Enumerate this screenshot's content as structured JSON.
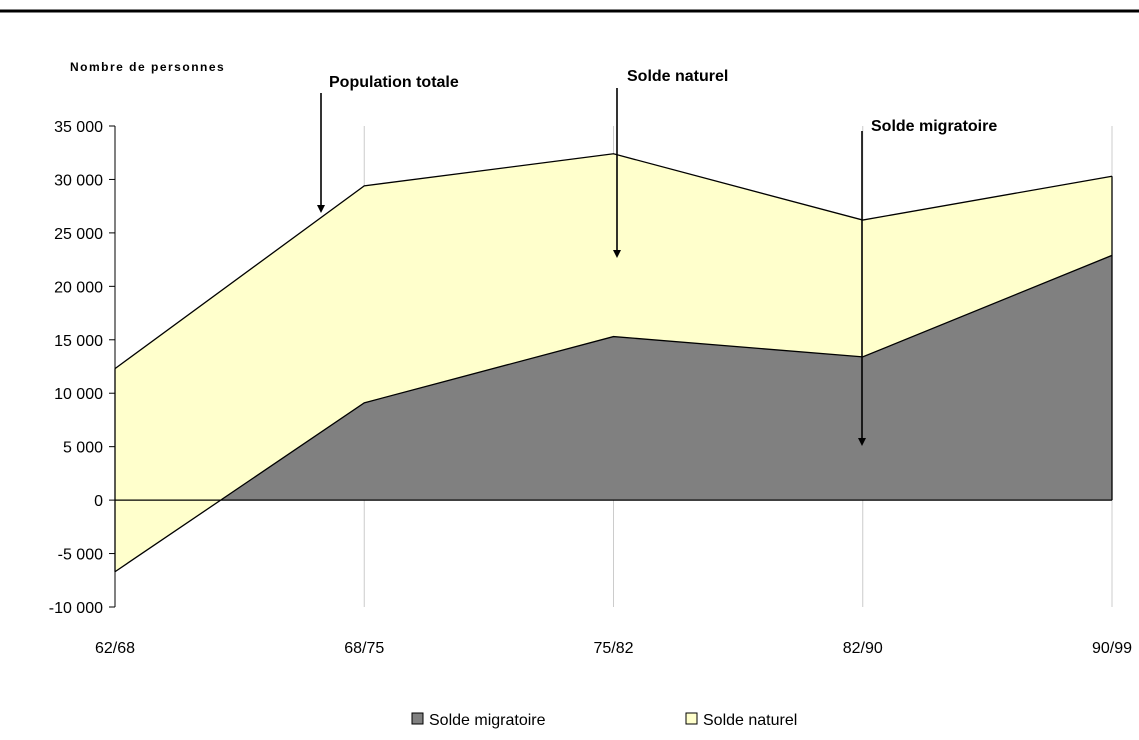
{
  "chart_data": {
    "type": "area",
    "stacked": true,
    "title": "",
    "xlabel": "",
    "ylabel": "Nombre de personnes",
    "categories": [
      "62/68",
      "68/75",
      "75/82",
      "82/90",
      "90/99"
    ],
    "ylim": [
      -10000,
      35000
    ],
    "yticks": [
      35000,
      30000,
      25000,
      20000,
      15000,
      10000,
      5000,
      0,
      -5000,
      -10000
    ],
    "ytick_labels": [
      "35 000",
      "30 000",
      "25 000",
      "20 000",
      "15 000",
      "10 000",
      "5 000",
      "0",
      "-5 000",
      "-10 000"
    ],
    "series": [
      {
        "name": "Solde migratoire",
        "values": [
          -6700,
          9100,
          15300,
          13400,
          22900
        ],
        "color": "#808080"
      },
      {
        "name": "Solde naturel",
        "values": [
          19000,
          20300,
          17100,
          12800,
          7400
        ],
        "color": "#ffffcc"
      }
    ],
    "totals": [
      12300,
      29400,
      32400,
      26200,
      30300
    ],
    "grid": "vertical",
    "legend_position": "bottom",
    "annotations": [
      {
        "text": "Population totale",
        "arrow_category": "68/75"
      },
      {
        "text": "Solde naturel",
        "arrow_category": "75/82"
      },
      {
        "text": "Solde migratoire",
        "arrow_category": "82/90"
      }
    ]
  }
}
